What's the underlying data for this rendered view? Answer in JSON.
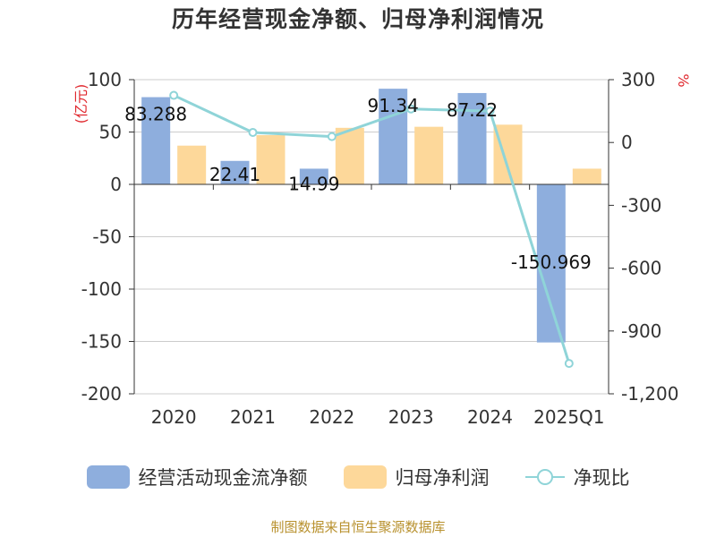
{
  "title": "历年经营现金净额、归母净利润情况",
  "source": "制图数据来自恒生聚源数据库",
  "left_axis_unit": "(亿元)",
  "right_axis_unit": "%",
  "colors": {
    "bar_cash": "#8eaedd",
    "bar_profit": "#fdd89a",
    "line_ratio": "#8fd4d8",
    "unit_red": "#e0282e"
  },
  "legend": [
    {
      "label": "经营活动现金流净额",
      "kind": "bar_cash"
    },
    {
      "label": "归母净利润",
      "kind": "bar_profit"
    },
    {
      "label": "净现比",
      "kind": "line_ratio"
    }
  ],
  "chart_data": {
    "type": "bar",
    "categories": [
      "2020",
      "2021",
      "2022",
      "2023",
      "2024",
      "2025Q1"
    ],
    "series": [
      {
        "name": "经营活动现金流净额",
        "axis": "left",
        "values": [
          83.288,
          22.41,
          14.99,
          91.34,
          87.22,
          -150.969
        ],
        "labels": [
          "83.288",
          "22.41",
          "14.99",
          "91.34",
          "87.22",
          "-150.969"
        ]
      },
      {
        "name": "归母净利润",
        "axis": "left",
        "values": [
          37,
          47,
          54,
          55,
          57,
          15
        ]
      },
      {
        "name": "净现比",
        "axis": "right",
        "type": "line",
        "values": [
          225,
          48,
          28,
          160,
          150,
          -1055
        ]
      }
    ],
    "ylim_left": [
      -200,
      100
    ],
    "yticks_left": [
      "100",
      "50",
      "0",
      "-50",
      "-100",
      "-150",
      "-200"
    ],
    "ylim_right": [
      -1200,
      300
    ],
    "yticks_right": [
      "300",
      "0",
      "-300",
      "-600",
      "-900",
      "-1,200"
    ],
    "grid": true
  }
}
